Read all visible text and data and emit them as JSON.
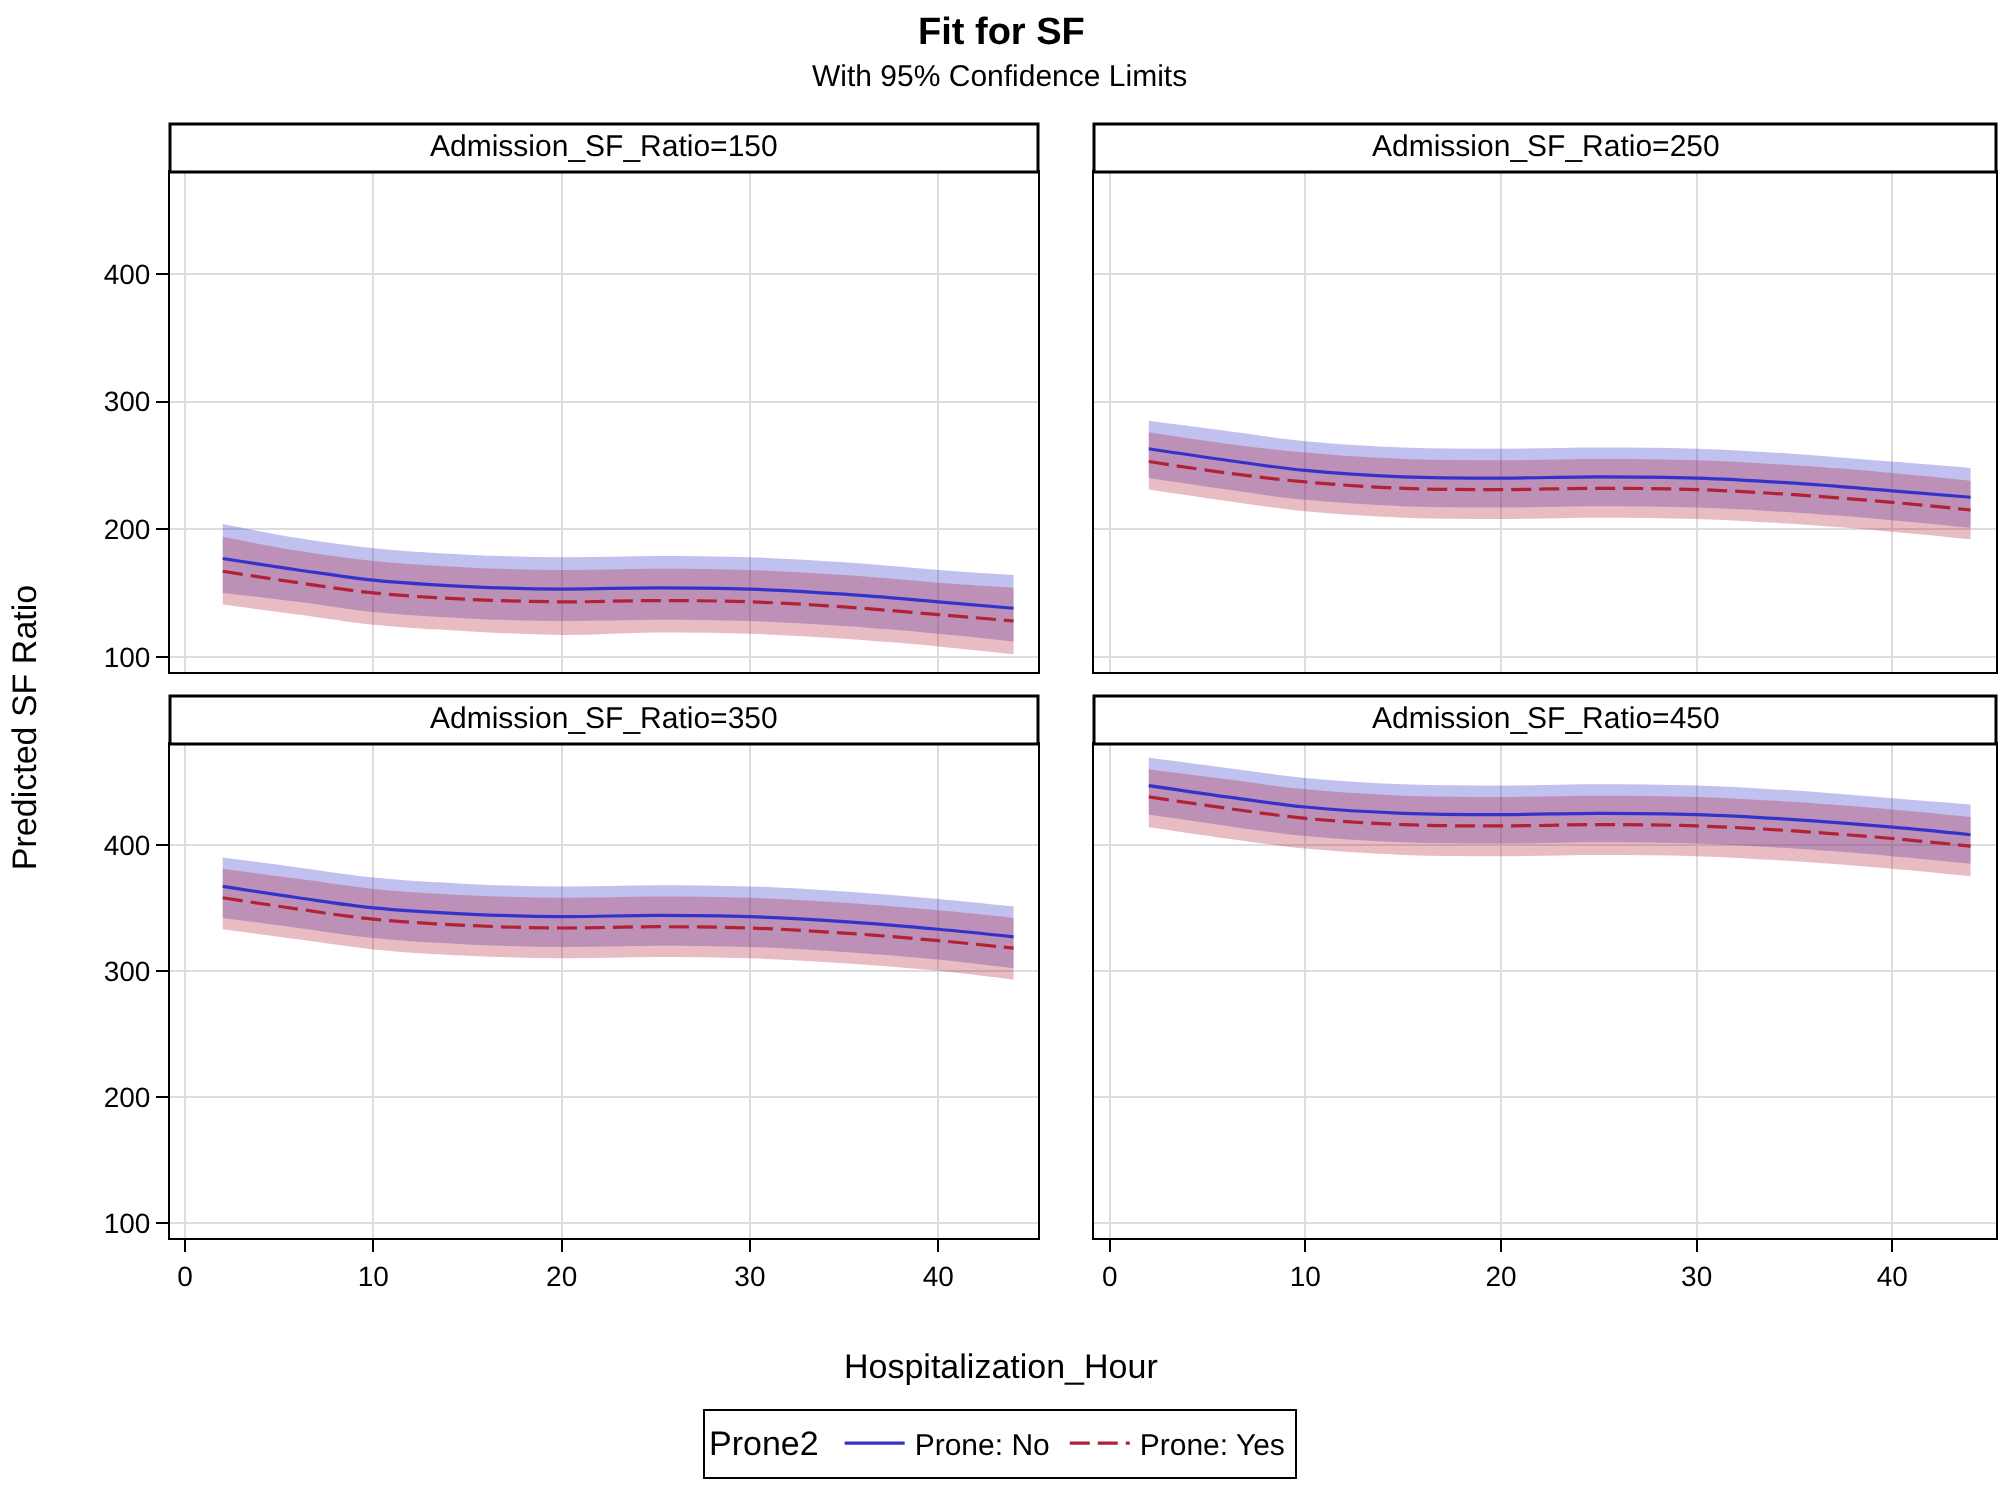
{
  "chart_data": [
    {
      "type": "line",
      "title": "Admission_SF_Ratio=150",
      "annotations": [
        "Fit for SF",
        "With 95% Confidence Limits"
      ],
      "ylabel": "Predicted SF Ratio",
      "legend": "bottom",
      "legend_title": "Prone2",
      "tick_labels": "y",
      "grid": true,
      "xlim": [
        -0.8,
        45.3
      ],
      "ylim": [
        88,
        480
      ],
      "xticks": [
        0,
        10,
        20,
        30,
        40
      ],
      "yticks": [
        100,
        200,
        300,
        400
      ],
      "x": [
        2,
        6,
        10,
        15,
        20,
        25,
        30,
        35,
        40,
        44
      ],
      "series": [
        {
          "name": "Prone: No",
          "color": "#3333cc",
          "line_style": "solid",
          "values": [
            177,
            168,
            160,
            155,
            153,
            154,
            153,
            149,
            143,
            138
          ],
          "lower": [
            150,
            143,
            135,
            130,
            128,
            129,
            128,
            124,
            118,
            112
          ],
          "upper": [
            204,
            193,
            185,
            180,
            178,
            179,
            178,
            174,
            168,
            164
          ]
        },
        {
          "name": "Prone: Yes",
          "color": "#b22234",
          "line_style": "dashed",
          "values": [
            167,
            158,
            150,
            145,
            143,
            144,
            143,
            139,
            133,
            128
          ],
          "lower": [
            141,
            133,
            125,
            120,
            117,
            119,
            118,
            114,
            108,
            102
          ],
          "upper": [
            194,
            183,
            175,
            170,
            168,
            169,
            168,
            164,
            158,
            154
          ]
        }
      ]
    },
    {
      "type": "line",
      "title": "Admission_SF_Ratio=250",
      "tick_labels": false,
      "grid": true,
      "xlim": [
        -0.8,
        45.3
      ],
      "ylim": [
        88,
        480
      ],
      "xticks": [
        0,
        10,
        20,
        30,
        40
      ],
      "yticks": [
        100,
        200,
        300,
        400
      ],
      "x": [
        2,
        6,
        10,
        15,
        20,
        25,
        30,
        35,
        40,
        44
      ],
      "series": [
        {
          "color": "#3333cc",
          "line_style": "solid",
          "values": [
            263,
            254,
            246,
            241,
            240,
            241,
            240,
            236,
            230,
            225
          ],
          "lower": [
            240,
            231,
            223,
            218,
            217,
            218,
            217,
            213,
            207,
            201
          ],
          "upper": [
            285,
            277,
            269,
            264,
            263,
            264,
            263,
            259,
            253,
            248
          ]
        },
        {
          "color": "#b22234",
          "line_style": "dashed",
          "values": [
            253,
            244,
            237,
            232,
            231,
            232,
            231,
            227,
            221,
            215
          ],
          "lower": [
            231,
            222,
            214,
            209,
            208,
            209,
            208,
            204,
            198,
            192
          ],
          "upper": [
            276,
            267,
            260,
            255,
            254,
            255,
            254,
            250,
            244,
            238
          ]
        }
      ]
    },
    {
      "type": "line",
      "title": "Admission_SF_Ratio=350",
      "xlabel": "Hospitalization_Hour",
      "grid": true,
      "xlim": [
        -0.8,
        45.3
      ],
      "ylim": [
        88,
        480
      ],
      "xticks": [
        0,
        10,
        20,
        30,
        40
      ],
      "yticks": [
        100,
        200,
        300,
        400
      ],
      "x": [
        2,
        6,
        10,
        15,
        20,
        25,
        30,
        35,
        40,
        44
      ],
      "series": [
        {
          "color": "#3333cc",
          "line_style": "solid",
          "values": [
            367,
            358,
            350,
            345,
            343,
            344,
            343,
            339,
            333,
            327
          ],
          "lower": [
            342,
            334,
            326,
            321,
            319,
            320,
            319,
            315,
            309,
            302
          ],
          "upper": [
            390,
            382,
            374,
            369,
            367,
            368,
            367,
            363,
            357,
            351
          ]
        },
        {
          "color": "#b22234",
          "line_style": "dashed",
          "values": [
            358,
            349,
            341,
            336,
            334,
            335,
            334,
            330,
            324,
            318
          ],
          "lower": [
            333,
            325,
            317,
            312,
            310,
            311,
            310,
            306,
            300,
            293
          ],
          "upper": [
            381,
            373,
            365,
            360,
            358,
            359,
            358,
            354,
            348,
            342
          ]
        }
      ]
    },
    {
      "type": "line",
      "title": "Admission_SF_Ratio=450",
      "tick_labels": "x",
      "grid": true,
      "xlim": [
        -0.8,
        45.3
      ],
      "ylim": [
        88,
        480
      ],
      "xticks": [
        0,
        10,
        20,
        30,
        40
      ],
      "yticks": [
        100,
        200,
        300,
        400
      ],
      "x": [
        2,
        6,
        10,
        15,
        20,
        25,
        30,
        35,
        40,
        44
      ],
      "series": [
        {
          "color": "#3333cc",
          "line_style": "solid",
          "values": [
            447,
            438,
            430,
            425,
            424,
            425,
            424,
            420,
            414,
            408
          ],
          "lower": [
            424,
            415,
            407,
            402,
            401,
            402,
            401,
            397,
            391,
            385
          ],
          "upper": [
            469,
            461,
            453,
            448,
            447,
            448,
            447,
            443,
            437,
            432
          ]
        },
        {
          "color": "#b22234",
          "line_style": "dashed",
          "values": [
            438,
            429,
            421,
            416,
            415,
            416,
            415,
            411,
            405,
            399
          ],
          "lower": [
            414,
            405,
            397,
            392,
            391,
            392,
            391,
            387,
            381,
            375
          ],
          "upper": [
            460,
            452,
            444,
            439,
            438,
            439,
            438,
            434,
            428,
            422
          ]
        }
      ]
    }
  ]
}
